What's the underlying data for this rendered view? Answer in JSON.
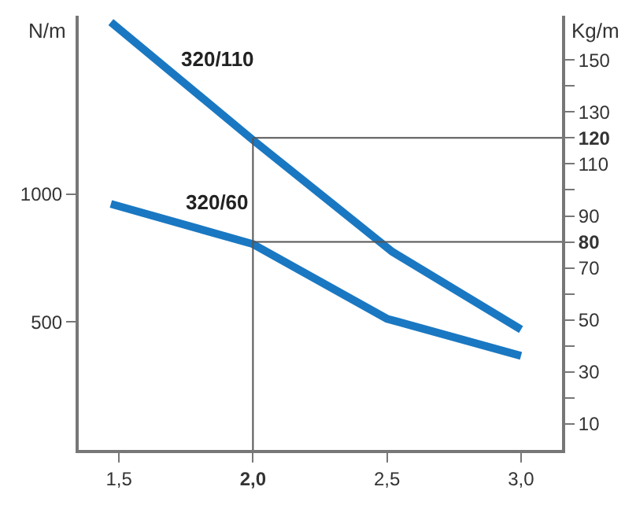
{
  "chart_data": {
    "type": "line",
    "ylabel": "N/m",
    "y2label": "Kg/m",
    "xlim": [
      1.35,
      3.153
    ],
    "xticks": [
      {
        "value": 1.5,
        "label": "1,5"
      },
      {
        "value": 2.0,
        "label": "2,0"
      },
      {
        "value": 2.5,
        "label": "2,5"
      },
      {
        "value": 3.0,
        "label": "3,0"
      }
    ],
    "ylim": [
      0,
      1698
    ],
    "yticks": [
      500,
      1000
    ],
    "y2lim": [
      0,
      167
    ],
    "y2ticks": [
      10,
      {
        "value": 20,
        "label": null
      },
      30,
      {
        "value": 40,
        "label": null
      },
      50,
      {
        "value": 60,
        "label": null
      },
      70,
      80,
      90,
      {
        "value": 100,
        "label": null
      },
      110,
      120,
      130,
      {
        "value": 140,
        "label": null
      },
      150
    ],
    "series": [
      {
        "name": "320/110",
        "color": "#1a78c2",
        "x": [
          1.47,
          2.0,
          2.52,
          3.0
        ],
        "values": [
          1673,
          1212,
          775,
          471
        ]
      },
      {
        "name": "320/60",
        "color": "#1a78c2",
        "x": [
          1.47,
          2.0,
          2.5,
          3.0
        ],
        "values": [
          962,
          805,
          513,
          368
        ]
      }
    ],
    "ref_lines": [
      {
        "axis": "x",
        "value": 2.0,
        "color": "#555555"
      },
      {
        "axis": "y2",
        "value": 120,
        "color": "#555555"
      },
      {
        "axis": "y2",
        "value": 80,
        "color": "#555555"
      }
    ],
    "legend": false,
    "marker": "none",
    "line_style": "solid"
  }
}
